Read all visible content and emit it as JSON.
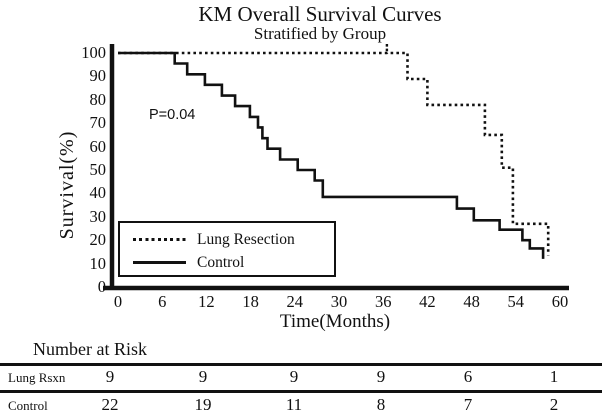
{
  "title": "KM Overall Survival Curves",
  "subtitle": "Stratified by Group",
  "annotation": {
    "p_value": "P=0.04"
  },
  "axes": {
    "y_label": "Survival(%)",
    "x_label": "Time(Months)",
    "y_ticks": [
      0,
      10,
      20,
      30,
      40,
      50,
      60,
      70,
      80,
      90,
      100
    ],
    "x_ticks": [
      0,
      6,
      12,
      18,
      24,
      30,
      36,
      42,
      48,
      54,
      60
    ]
  },
  "legend": {
    "items": [
      {
        "label": "Lung Resection",
        "style": "dotted"
      },
      {
        "label": "Control",
        "style": "solid"
      }
    ]
  },
  "chart_data": {
    "type": "line",
    "subtype": "kaplan-meier-step",
    "title": "KM Overall Survival Curves",
    "subtitle": "Stratified by Group",
    "xlabel": "Time(Months)",
    "ylabel": "Survival(%)",
    "xlim": [
      0,
      60
    ],
    "ylim": [
      0,
      100
    ],
    "grid": false,
    "legend_position": "lower-left-inside",
    "p_value_annotation": "P=0.04",
    "series": [
      {
        "name": "Lung Resection",
        "line": "dotted",
        "color": "#111111",
        "start_survival": 100,
        "drops": [
          {
            "t": 39.3,
            "s": 88.9
          },
          {
            "t": 42.0,
            "s": 77.8
          },
          {
            "t": 49.8,
            "s": 65.0
          },
          {
            "t": 52.1,
            "s": 51.0
          },
          {
            "t": 53.6,
            "s": 27.0
          },
          {
            "t": 58.4,
            "s": 13.5
          }
        ],
        "censor_marks": [
          {
            "t": 36.5,
            "s": 100
          }
        ]
      },
      {
        "name": "Control",
        "line": "solid",
        "color": "#111111",
        "start_survival": 100,
        "drops": [
          {
            "t": 7.7,
            "s": 95.5
          },
          {
            "t": 9.4,
            "s": 90.9
          },
          {
            "t": 11.8,
            "s": 86.4
          },
          {
            "t": 14.1,
            "s": 81.8
          },
          {
            "t": 15.9,
            "s": 77.3
          },
          {
            "t": 17.9,
            "s": 72.7
          },
          {
            "t": 19.0,
            "s": 68.2
          },
          {
            "t": 19.6,
            "s": 63.6
          },
          {
            "t": 20.3,
            "s": 59.1
          },
          {
            "t": 22.0,
            "s": 54.5
          },
          {
            "t": 24.4,
            "s": 50.0
          },
          {
            "t": 26.7,
            "s": 45.5
          },
          {
            "t": 27.8,
            "s": 38.5
          },
          {
            "t": 46.0,
            "s": 33.5
          },
          {
            "t": 48.3,
            "s": 28.5
          },
          {
            "t": 51.8,
            "s": 24.5
          },
          {
            "t": 54.9,
            "s": 20.0
          },
          {
            "t": 55.9,
            "s": 16.5
          },
          {
            "t": 57.7,
            "s": 12.0
          }
        ],
        "censor_marks": []
      }
    ]
  },
  "risk_table": {
    "heading": "Number at Risk",
    "time_points": [
      0,
      12,
      24,
      36,
      48,
      60
    ],
    "rows": [
      {
        "label": "Lung Rsxn",
        "values": [
          "9",
          "9",
          "9",
          "9",
          "6",
          "1"
        ]
      },
      {
        "label": "Control",
        "values": [
          "22",
          "19",
          "11",
          "8",
          "7",
          "2"
        ]
      }
    ]
  },
  "colors": {
    "line": "#111111",
    "background": "#ffffff"
  }
}
